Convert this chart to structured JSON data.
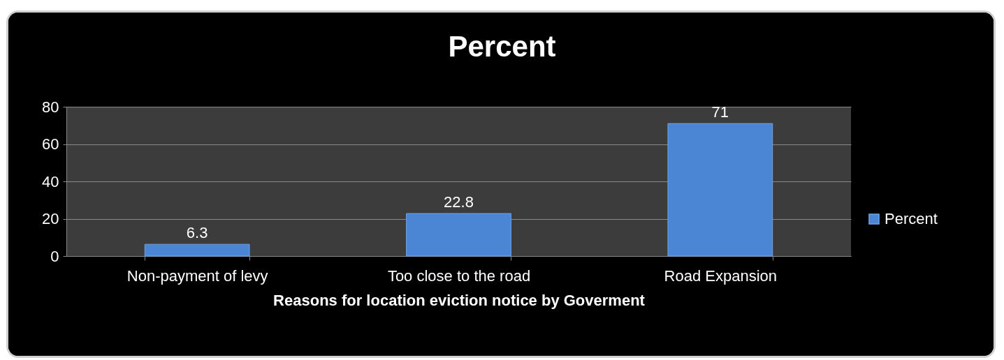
{
  "chart_data": {
    "type": "bar",
    "title": "Percent",
    "xlabel": "Reasons for location eviction notice by Goverment",
    "categories": [
      "Non-payment of levy",
      "Too close to the road",
      "Road Expansion"
    ],
    "series": [
      {
        "name": "Percent",
        "color": "#4a86d4",
        "values": [
          6.3,
          22.8,
          71
        ]
      }
    ],
    "ylim": [
      0,
      80
    ],
    "yticks": [
      0,
      20,
      40,
      60,
      80
    ],
    "grid": "y",
    "legend": "right",
    "data_labels": true
  }
}
